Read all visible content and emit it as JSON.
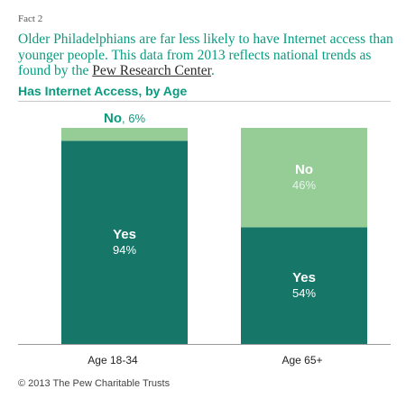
{
  "header": {
    "fact_label": "Fact 2",
    "headline_text": "Older Philadelphians are far less likely to have Internet access than younger people. This data from 2013 reflects national trends as found by the ",
    "headline_link": "Pew Research Center",
    "headline_end": "."
  },
  "chart_data": {
    "type": "bar",
    "stacked": true,
    "title": "Has Internet Access, by Age",
    "categories": [
      "Age 18-34",
      "Age 65+"
    ],
    "series": [
      {
        "name": "Yes",
        "values": [
          94,
          54
        ],
        "labels": [
          "94%",
          "54%"
        ],
        "color": "#167769"
      },
      {
        "name": "No",
        "values": [
          6,
          46
        ],
        "labels": [
          "6%",
          "46%"
        ],
        "color": "#96cd97"
      }
    ],
    "ylim": [
      0,
      100
    ],
    "grid": false,
    "legend": "none",
    "outside_label": {
      "category": "Age 18-34",
      "series": "No",
      "name": "No",
      "value": "6%"
    }
  },
  "colors": {
    "accent": "#0a9b7f",
    "yes": "#167769",
    "no": "#96cd97",
    "label_on_light": "#ffffff",
    "label_value_light": "#e6f3ec"
  },
  "footer": {
    "copyright": "© 2013 The Pew Charitable Trusts"
  }
}
